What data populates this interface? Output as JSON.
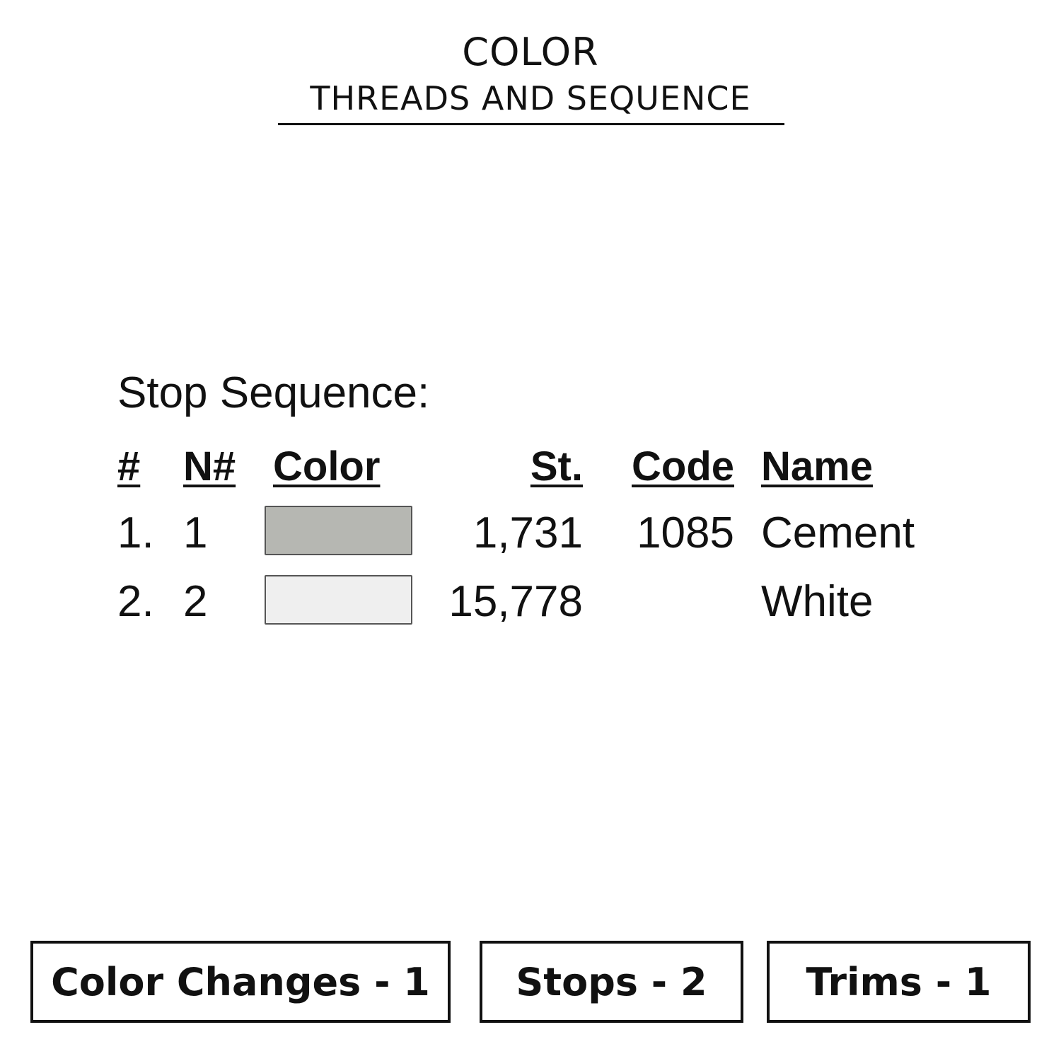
{
  "header": {
    "title": "COLOR",
    "subtitle": "THREADS AND SEQUENCE"
  },
  "sequence": {
    "label": "Stop Sequence:",
    "columns": [
      "#",
      "N#",
      "Color",
      "St.",
      "Code",
      "Name"
    ],
    "rows": [
      {
        "index": "1.",
        "needle": "1",
        "color": "#b6b7b2",
        "stitches": "1,731",
        "code": "1085",
        "name": "Cement"
      },
      {
        "index": "2.",
        "needle": "2",
        "color": "#efefef",
        "stitches": "15,778",
        "code": "",
        "name": "White"
      }
    ]
  },
  "summary": {
    "color_changes": "Color Changes - 1",
    "stops": "Stops - 2",
    "trims": "Trims - 1"
  }
}
